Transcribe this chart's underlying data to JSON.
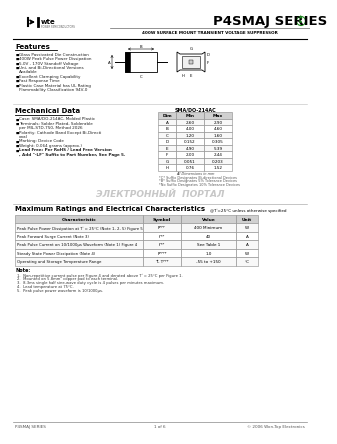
{
  "title": "P4SMAJ SERIES",
  "subtitle": "400W SURFACE MOUNT TRANSIENT VOLTAGE SUPPRESSOR",
  "features_title": "Features",
  "features": [
    "Glass Passivated Die Construction",
    "400W Peak Pulse Power Dissipation",
    "5.0V - 170V Standoff Voltage",
    "Uni- and Bi-Directional Versions Available",
    "Excellent Clamping Capability",
    "Fast Response Time",
    "Plastic Case Material has UL Flammability Classification Rating 94V-0"
  ],
  "mech_title": "Mechanical Data",
  "mech_items": [
    "Case: SMA/DO-214AC, Molded Plastic",
    "Terminals: Solder Plated, Solderable per MIL-STD-750, Method 2026",
    "Polarity: Cathode Band Except Bi-Directional",
    "Marking: Device Code",
    "Weight: 0.064 grams (approx.)",
    "Lead Free: Per RoHS / Lead Free Version, Add \"-LF\" Suffix to Part Number, See Page 5."
  ],
  "mech_bold": [
    false,
    false,
    false,
    false,
    false,
    true
  ],
  "dim_table_title": "SMA/DO-214AC",
  "dim_headers": [
    "Dim",
    "Min",
    "Max"
  ],
  "dim_rows": [
    [
      "A",
      "2.60",
      "2.90"
    ],
    [
      "B",
      "4.00",
      "4.60"
    ],
    [
      "C",
      "1.20",
      "1.60"
    ],
    [
      "D",
      "0.152",
      "0.305"
    ],
    [
      "E",
      "4.90",
      "5.39"
    ],
    [
      "F",
      "2.00",
      "2.44"
    ],
    [
      "G",
      "0.051",
      "0.203"
    ],
    [
      "H",
      "0.76",
      "1.52"
    ]
  ],
  "dim_note": "All Dimensions in mm",
  "dim_footnotes": [
    "*C* Suffix Designates Bi-directional Devices",
    "*B* Suffix Designates 5% Tolerance Devices",
    "*No Suffix Designates 10% Tolerance Devices"
  ],
  "watermark": "ЭЛЕКТРОННЫЙ  ПОРТАЛ",
  "ratings_title": "Maximum Ratings and Electrical Characteristics",
  "ratings_subtitle": "@Tⁱ=25°C unless otherwise specified",
  "rat_headers": [
    "Characteristic",
    "Symbol",
    "Value",
    "Unit"
  ],
  "rat_rows": [
    [
      "Peak Pulse Power Dissipation at Tⁱ = 25°C (Note 1, 2, 5) Figure 5",
      "Pᵖᵖᵖ",
      "400 Minimum",
      "W"
    ],
    [
      "Peak Forward Surge Current (Note 3)",
      "Iᵖᵖᵖ",
      "40",
      "A"
    ],
    [
      "Peak Pulse Current on 10/1000μs Waveform (Note 1) Figure 4",
      "Iᵖᵖᵖ",
      "See Table 1",
      "A"
    ],
    [
      "Steady State Power Dissipation (Note 4)",
      "Pᵖᵖᵖᵖ",
      "1.0",
      "W"
    ],
    [
      "Operating and Storage Temperature Range",
      "Tⁱ, Tᵖᵖᵖ",
      "-55 to +150",
      "°C"
    ]
  ],
  "notes_title": "Note:",
  "notes": [
    "1.  Non-repetitive current pulse per Figure 4 and derated above Tⁱ = 25°C per Figure 1.",
    "2.  Mounted on 5.8mm² copper pad to each terminal.",
    "3.  8.3ms single half sine-wave duty cycle is 4 pulses per minutes maximum.",
    "4.  Lead temperature at 75°C.",
    "5.  Peak pulse power waveform is 10/1000μs."
  ],
  "footer_left": "P4SMAJ SERIES",
  "footer_center": "1 of 6",
  "footer_right": "© 2006 Won-Top Electronics",
  "bg_color": "#ffffff",
  "table_header_bg": "#d0d0d0",
  "table_border_color": "#888888",
  "green_color": "#228B22"
}
